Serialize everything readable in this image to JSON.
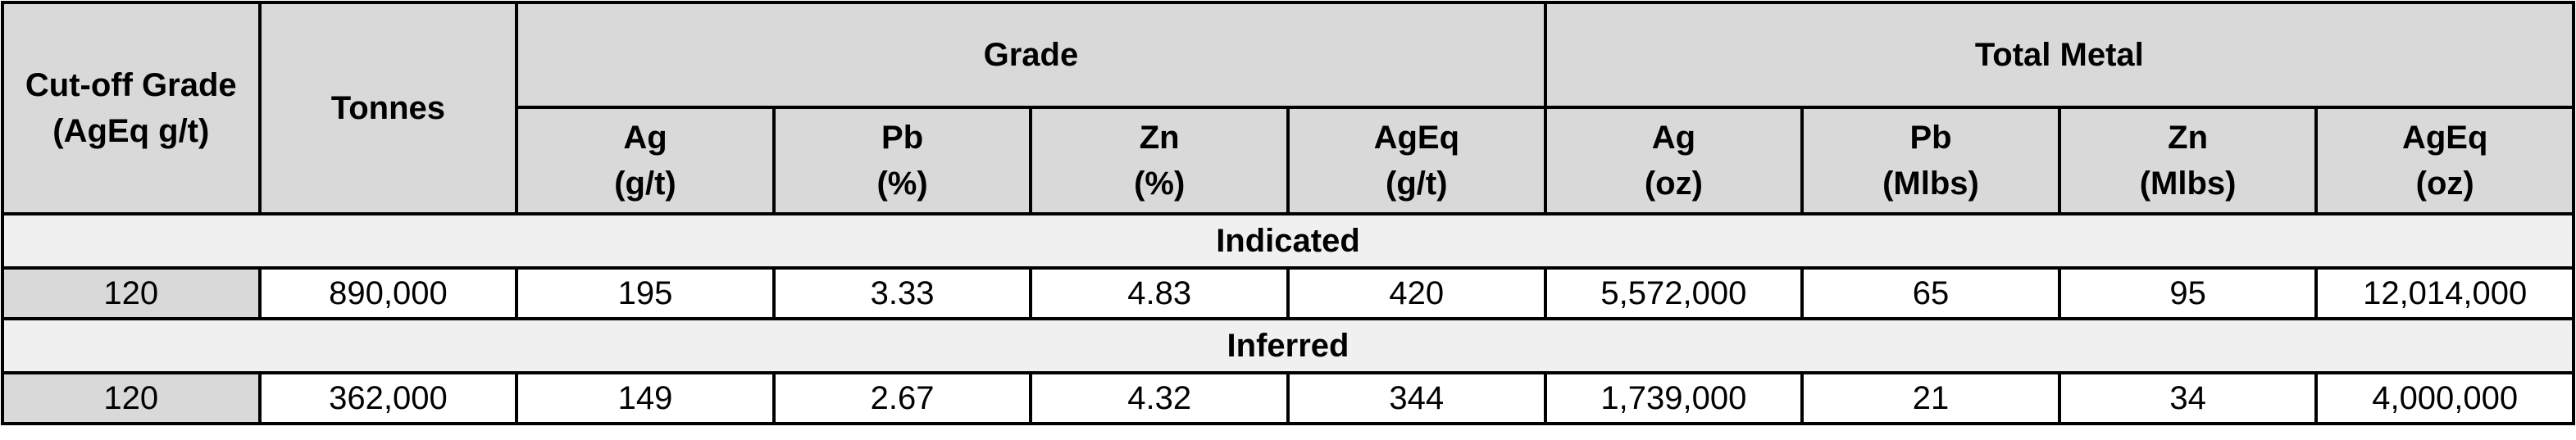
{
  "header": {
    "cutoff": [
      "Cut-off Grade",
      "(AgEq g/t)"
    ],
    "tonnes": "Tonnes",
    "grade": "Grade",
    "total_metal": "Total Metal",
    "grade_columns": [
      [
        "Ag",
        "(g/t)"
      ],
      [
        "Pb",
        "(%)"
      ],
      [
        "Zn",
        "(%)"
      ],
      [
        "AgEq",
        "(g/t)"
      ]
    ],
    "metal_columns": [
      [
        "Ag",
        "(oz)"
      ],
      [
        "Pb",
        "(Mlbs)"
      ],
      [
        "Zn",
        "(Mlbs)"
      ],
      [
        "AgEq",
        "(oz)"
      ]
    ]
  },
  "sections": [
    {
      "name": "Indicated",
      "row": [
        "120",
        "890,000",
        "195",
        "3.33",
        "4.83",
        "420",
        "5,572,000",
        "65",
        "95",
        "12,014,000"
      ]
    },
    {
      "name": "Inferred",
      "row": [
        "120",
        "362,000",
        "149",
        "2.67",
        "4.32",
        "344",
        "1,739,000",
        "21",
        "34",
        "4,000,000"
      ]
    }
  ]
}
